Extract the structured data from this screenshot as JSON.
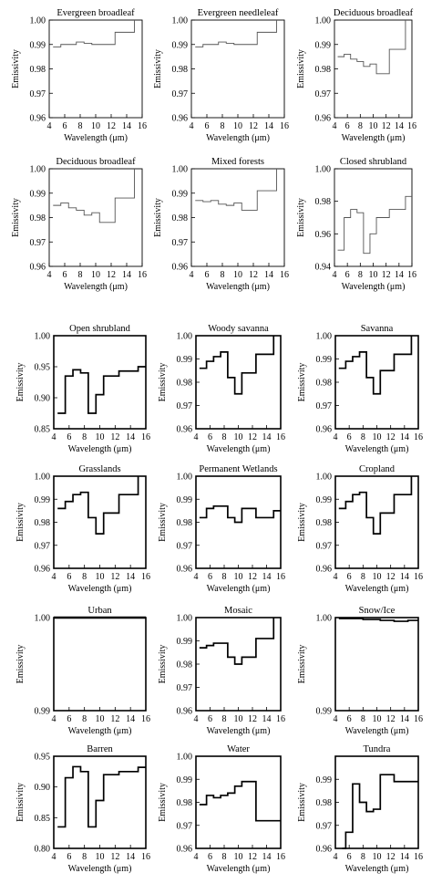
{
  "chart_data": [
    {
      "type": "line",
      "title": "Evergreen broadleaf",
      "xlabel": "Wavelength (μm)",
      "ylabel": "Emissivity",
      "xlim": [
        4,
        16
      ],
      "ylim": [
        0.96,
        1.0
      ],
      "xticks": [
        "4",
        "6",
        "8",
        "10",
        "12",
        "14",
        "16"
      ],
      "yticks": [
        "0.96",
        "0.97",
        "0.98",
        "0.99",
        "1.00"
      ],
      "style": "light",
      "x": [
        4.5,
        5.5,
        5.5,
        6.5,
        6.5,
        7.5,
        7.5,
        8.5,
        8.5,
        9.5,
        9.5,
        10.5,
        10.5,
        11.5,
        11.5,
        12.5,
        12.5,
        14,
        14,
        15,
        15
      ],
      "y": [
        0.989,
        0.989,
        0.99,
        0.99,
        0.99,
        0.99,
        0.991,
        0.991,
        0.9905,
        0.9905,
        0.99,
        0.99,
        0.99,
        0.99,
        0.99,
        0.99,
        0.995,
        0.995,
        0.995,
        0.995,
        1.0
      ]
    },
    {
      "type": "line",
      "title": "Evergreen needleleaf",
      "xlabel": "Wavelength (μm)",
      "ylabel": "Emissivity",
      "xlim": [
        4,
        16
      ],
      "ylim": [
        0.96,
        1.0
      ],
      "xticks": [
        "4",
        "6",
        "8",
        "10",
        "12",
        "14",
        "16"
      ],
      "yticks": [
        "0.96",
        "0.97",
        "0.98",
        "0.99",
        "1.00"
      ],
      "style": "light",
      "x": [
        4.5,
        5.5,
        5.5,
        6.5,
        6.5,
        7.5,
        7.5,
        8.5,
        8.5,
        9.5,
        9.5,
        10.5,
        10.5,
        11.5,
        11.5,
        12.5,
        12.5,
        14,
        14,
        15,
        15
      ],
      "y": [
        0.989,
        0.989,
        0.99,
        0.99,
        0.99,
        0.99,
        0.991,
        0.991,
        0.9905,
        0.9905,
        0.99,
        0.99,
        0.99,
        0.99,
        0.99,
        0.99,
        0.995,
        0.995,
        0.995,
        0.995,
        1.0
      ]
    },
    {
      "type": "line",
      "title": "Deciduous broadleaf",
      "xlabel": "Wavelength (μm)",
      "ylabel": "Emissivity",
      "xlim": [
        4,
        16
      ],
      "ylim": [
        0.96,
        1.0
      ],
      "xticks": [
        "4",
        "6",
        "8",
        "10",
        "12",
        "14",
        "16"
      ],
      "yticks": [
        "0.96",
        "0.97",
        "0.98",
        "0.99",
        "1.00"
      ],
      "style": "light",
      "x": [
        4.5,
        5.5,
        5.5,
        6.5,
        6.5,
        7.5,
        7.5,
        8.5,
        8.5,
        9.5,
        9.5,
        10.5,
        10.5,
        12.5,
        12.5,
        15,
        15
      ],
      "y": [
        0.985,
        0.985,
        0.986,
        0.986,
        0.984,
        0.984,
        0.983,
        0.983,
        0.981,
        0.981,
        0.982,
        0.982,
        0.978,
        0.978,
        0.988,
        0.988,
        1.0
      ]
    },
    {
      "type": "line",
      "title": "Deciduous broadleaf",
      "xlabel": "Wavelength (μm)",
      "ylabel": "Emissivity",
      "xlim": [
        4,
        16
      ],
      "ylim": [
        0.96,
        1.0
      ],
      "xticks": [
        "4",
        "6",
        "8",
        "10",
        "12",
        "14",
        "16"
      ],
      "yticks": [
        "0.96",
        "0.97",
        "0.98",
        "0.99",
        "1.00"
      ],
      "style": "light",
      "x": [
        4.5,
        5.5,
        5.5,
        6.5,
        6.5,
        7.5,
        7.5,
        8.5,
        8.5,
        9.5,
        9.5,
        10.5,
        10.5,
        12.5,
        12.5,
        15,
        15
      ],
      "y": [
        0.985,
        0.985,
        0.986,
        0.986,
        0.984,
        0.984,
        0.983,
        0.983,
        0.981,
        0.981,
        0.982,
        0.982,
        0.978,
        0.978,
        0.988,
        0.988,
        1.0
      ]
    },
    {
      "type": "line",
      "title": "Mixed forests",
      "xlabel": "Wavelength (μm)",
      "ylabel": "Emissivity",
      "xlim": [
        4,
        16
      ],
      "ylim": [
        0.96,
        1.0
      ],
      "xticks": [
        "4",
        "6",
        "8",
        "10",
        "12",
        "14",
        "16"
      ],
      "yticks": [
        "0.96",
        "0.97",
        "0.98",
        "0.99",
        "1.00"
      ],
      "style": "light",
      "x": [
        4.5,
        5.5,
        5.5,
        6.5,
        6.5,
        7.5,
        7.5,
        8.5,
        8.5,
        9.5,
        9.5,
        10.5,
        10.5,
        12.5,
        12.5,
        14,
        14,
        15,
        15
      ],
      "y": [
        0.987,
        0.987,
        0.9865,
        0.9865,
        0.987,
        0.987,
        0.9855,
        0.9855,
        0.985,
        0.985,
        0.986,
        0.986,
        0.983,
        0.983,
        0.991,
        0.991,
        0.991,
        0.991,
        1.0
      ]
    },
    {
      "type": "line",
      "title": "Closed shrubland",
      "xlabel": "Wavelength (μm)",
      "ylabel": "Emissivity",
      "xlim": [
        4,
        16
      ],
      "ylim": [
        0.94,
        1.0
      ],
      "xticks": [
        "4",
        "6",
        "8",
        "10",
        "12",
        "14",
        "16"
      ],
      "yticks": [
        "0.94",
        "0.96",
        "0.98",
        "1.00"
      ],
      "style": "light",
      "x": [
        4.5,
        5.5,
        5.5,
        6.5,
        6.5,
        7.5,
        7.5,
        8.5,
        8.5,
        9.5,
        9.5,
        10.5,
        10.5,
        12.5,
        12.5,
        15,
        15,
        16
      ],
      "y": [
        0.95,
        0.95,
        0.97,
        0.97,
        0.975,
        0.975,
        0.973,
        0.973,
        0.948,
        0.948,
        0.96,
        0.96,
        0.97,
        0.97,
        0.975,
        0.975,
        0.983,
        0.983
      ]
    },
    {
      "type": "line",
      "title": "Open shrubland",
      "xlabel": "Wavelength (μm)",
      "ylabel": "Emissivity",
      "xlim": [
        4,
        16
      ],
      "ylim": [
        0.85,
        1.0
      ],
      "xticks": [
        "4",
        "6",
        "8",
        "10",
        "12",
        "14",
        "16"
      ],
      "yticks": [
        "0.85",
        "0.90",
        "0.95",
        "1.00"
      ],
      "style": "bold",
      "x": [
        4.5,
        5.5,
        5.5,
        6.5,
        6.5,
        7.5,
        7.5,
        8.5,
        8.5,
        9.5,
        9.5,
        10.5,
        10.5,
        12.5,
        12.5,
        15,
        15,
        16
      ],
      "y": [
        0.875,
        0.875,
        0.935,
        0.935,
        0.945,
        0.945,
        0.94,
        0.94,
        0.875,
        0.875,
        0.905,
        0.905,
        0.935,
        0.935,
        0.943,
        0.943,
        0.95,
        0.95
      ]
    },
    {
      "type": "line",
      "title": "Woody savanna",
      "xlabel": "Wavelength (μm)",
      "ylabel": "Emissivity",
      "xlim": [
        4,
        16
      ],
      "ylim": [
        0.96,
        1.0
      ],
      "xticks": [
        "4",
        "6",
        "8",
        "10",
        "12",
        "14",
        "16"
      ],
      "yticks": [
        "0.96",
        "0.97",
        "0.98",
        "0.99",
        "1.00"
      ],
      "style": "bold",
      "x": [
        4.5,
        5.5,
        5.5,
        6.5,
        6.5,
        7.5,
        7.5,
        8.5,
        8.5,
        9.5,
        9.5,
        10.5,
        10.5,
        12.5,
        12.5,
        15,
        15
      ],
      "y": [
        0.986,
        0.986,
        0.989,
        0.989,
        0.991,
        0.991,
        0.993,
        0.993,
        0.982,
        0.982,
        0.975,
        0.975,
        0.984,
        0.984,
        0.992,
        0.992,
        1.0
      ]
    },
    {
      "type": "line",
      "title": "Savanna",
      "xlabel": "Wavelength (μm)",
      "ylabel": "Emissivity",
      "xlim": [
        4,
        16
      ],
      "ylim": [
        0.96,
        1.0
      ],
      "xticks": [
        "4",
        "6",
        "8",
        "10",
        "12",
        "14",
        "16"
      ],
      "yticks": [
        "0.96",
        "0.97",
        "0.98",
        "0.99",
        "1.00"
      ],
      "style": "bold",
      "x": [
        4.5,
        5.5,
        5.5,
        6.5,
        6.5,
        7.5,
        7.5,
        8.5,
        8.5,
        9.5,
        9.5,
        10.5,
        10.5,
        12.5,
        12.5,
        15,
        15
      ],
      "y": [
        0.986,
        0.986,
        0.989,
        0.989,
        0.991,
        0.991,
        0.993,
        0.993,
        0.982,
        0.982,
        0.975,
        0.975,
        0.985,
        0.985,
        0.992,
        0.992,
        1.0
      ]
    },
    {
      "type": "line",
      "title": "Grasslands",
      "xlabel": "Wavelength (μm)",
      "ylabel": "Emissivity",
      "xlim": [
        4,
        16
      ],
      "ylim": [
        0.96,
        1.0
      ],
      "xticks": [
        "4",
        "6",
        "8",
        "10",
        "12",
        "14",
        "16"
      ],
      "yticks": [
        "0.96",
        "0.97",
        "0.98",
        "0.99",
        "1.00"
      ],
      "style": "bold",
      "x": [
        4.5,
        5.5,
        5.5,
        6.5,
        6.5,
        7.5,
        7.5,
        8.5,
        8.5,
        9.5,
        9.5,
        10.5,
        10.5,
        12.5,
        12.5,
        15,
        15
      ],
      "y": [
        0.986,
        0.986,
        0.989,
        0.989,
        0.992,
        0.992,
        0.993,
        0.993,
        0.982,
        0.982,
        0.975,
        0.975,
        0.984,
        0.984,
        0.992,
        0.992,
        1.0
      ]
    },
    {
      "type": "line",
      "title": "Permanent Wetlands",
      "xlabel": "Wavelength (μm)",
      "ylabel": "Emissivity",
      "xlim": [
        4,
        16
      ],
      "ylim": [
        0.96,
        1.0
      ],
      "xticks": [
        "4",
        "6",
        "8",
        "10",
        "12",
        "14",
        "16"
      ],
      "yticks": [
        "0.96",
        "0.97",
        "0.98",
        "0.99",
        "1.00"
      ],
      "style": "bold",
      "x": [
        4.5,
        5.5,
        5.5,
        6.5,
        6.5,
        7.5,
        7.5,
        8.5,
        8.5,
        9.5,
        9.5,
        10.5,
        10.5,
        12.5,
        12.5,
        15,
        15,
        16
      ],
      "y": [
        0.982,
        0.982,
        0.986,
        0.986,
        0.987,
        0.987,
        0.987,
        0.987,
        0.982,
        0.982,
        0.98,
        0.98,
        0.986,
        0.986,
        0.982,
        0.982,
        0.985,
        0.985
      ]
    },
    {
      "type": "line",
      "title": "Cropland",
      "xlabel": "Wavelength (μm)",
      "ylabel": "Emissivity",
      "xlim": [
        4,
        16
      ],
      "ylim": [
        0.96,
        1.0
      ],
      "xticks": [
        "4",
        "6",
        "8",
        "10",
        "12",
        "14",
        "16"
      ],
      "yticks": [
        "0.96",
        "0.97",
        "0.98",
        "0.99",
        "1.00"
      ],
      "style": "bold",
      "x": [
        4.5,
        5.5,
        5.5,
        6.5,
        6.5,
        7.5,
        7.5,
        8.5,
        8.5,
        9.5,
        9.5,
        10.5,
        10.5,
        12.5,
        12.5,
        15,
        15
      ],
      "y": [
        0.986,
        0.986,
        0.989,
        0.989,
        0.992,
        0.992,
        0.993,
        0.993,
        0.982,
        0.982,
        0.975,
        0.975,
        0.984,
        0.984,
        0.992,
        0.992,
        1.0
      ]
    },
    {
      "type": "line",
      "title": "Urban",
      "xlabel": "Wavelength (μm)",
      "ylabel": "Emissivity",
      "xlim": [
        4,
        16
      ],
      "ylim": [
        0.99,
        1.0
      ],
      "xticks": [
        "4",
        "6",
        "8",
        "10",
        "12",
        "14",
        "16"
      ],
      "yticks": [
        "0.99",
        "1.00"
      ],
      "style": "bold",
      "x": [
        4,
        16
      ],
      "y": [
        1.0,
        1.0
      ]
    },
    {
      "type": "line",
      "title": "Mosaic",
      "xlabel": "Wavelength (μm)",
      "ylabel": "Emissivity",
      "xlim": [
        4,
        16
      ],
      "ylim": [
        0.96,
        1.0
      ],
      "xticks": [
        "4",
        "6",
        "8",
        "10",
        "12",
        "14",
        "16"
      ],
      "yticks": [
        "0.96",
        "0.97",
        "0.98",
        "0.99",
        "1.00"
      ],
      "style": "bold",
      "x": [
        4.5,
        5.5,
        5.5,
        6.5,
        6.5,
        7.5,
        7.5,
        8.5,
        8.5,
        9.5,
        9.5,
        10.5,
        10.5,
        12.5,
        12.5,
        15,
        15
      ],
      "y": [
        0.987,
        0.987,
        0.988,
        0.988,
        0.989,
        0.989,
        0.989,
        0.989,
        0.983,
        0.983,
        0.98,
        0.98,
        0.983,
        0.983,
        0.991,
        0.991,
        1.0
      ]
    },
    {
      "type": "line",
      "title": "Snow/Ice",
      "xlabel": "Wavelength (μm)",
      "ylabel": "Emissivity",
      "xlim": [
        4,
        16
      ],
      "ylim": [
        0.99,
        1.0
      ],
      "xticks": [
        "4",
        "6",
        "8",
        "10",
        "12",
        "14",
        "16"
      ],
      "yticks": [
        "0.99",
        "1.00"
      ],
      "style": "bold",
      "x": [
        4.5,
        8,
        8,
        10.5,
        10.5,
        12.5,
        12.5,
        14.5,
        14.5,
        16
      ],
      "y": [
        0.9999,
        0.9999,
        0.9998,
        0.9998,
        0.9997,
        0.9997,
        0.9996,
        0.9996,
        0.9997,
        0.9997
      ]
    },
    {
      "type": "line",
      "title": "Barren",
      "xlabel": "Wavelength (μm)",
      "ylabel": "Emissivity",
      "xlim": [
        4,
        16
      ],
      "ylim": [
        0.8,
        0.95
      ],
      "xticks": [
        "4",
        "6",
        "8",
        "10",
        "12",
        "14",
        "16"
      ],
      "yticks": [
        "0.80",
        "0.85",
        "0.90",
        "0.95"
      ],
      "style": "bold",
      "x": [
        4.5,
        5.5,
        5.5,
        6.5,
        6.5,
        7.5,
        7.5,
        8.5,
        8.5,
        9.5,
        9.5,
        10.5,
        10.5,
        12.5,
        12.5,
        15,
        15,
        16
      ],
      "y": [
        0.835,
        0.835,
        0.915,
        0.915,
        0.933,
        0.933,
        0.925,
        0.925,
        0.835,
        0.835,
        0.878,
        0.878,
        0.92,
        0.92,
        0.925,
        0.925,
        0.932,
        0.932
      ]
    },
    {
      "type": "line",
      "title": "Water",
      "xlabel": "Wavelength (μm)",
      "ylabel": "Emissivity",
      "xlim": [
        4,
        16
      ],
      "ylim": [
        0.96,
        1.0
      ],
      "xticks": [
        "4",
        "6",
        "8",
        "10",
        "12",
        "14",
        "16"
      ],
      "yticks": [
        "0.96",
        "0.97",
        "0.98",
        "0.99",
        "1.00"
      ],
      "style": "bold",
      "x": [
        4.5,
        5.5,
        5.5,
        6.5,
        6.5,
        7.5,
        7.5,
        8.5,
        8.5,
        9.5,
        9.5,
        10.5,
        10.5,
        12.5,
        12.5,
        16
      ],
      "y": [
        0.979,
        0.979,
        0.983,
        0.983,
        0.982,
        0.982,
        0.983,
        0.983,
        0.984,
        0.984,
        0.987,
        0.987,
        0.989,
        0.989,
        0.972,
        0.972
      ]
    },
    {
      "type": "line",
      "title": "Tundra",
      "xlabel": "Wavelength (μm)",
      "ylabel": "Emissivity",
      "xlim": [
        4,
        16
      ],
      "ylim": [
        0.96,
        1.0
      ],
      "xticks": [
        "4",
        "6",
        "8",
        "10",
        "12",
        "14",
        "16"
      ],
      "yticks": [
        "0.96",
        "0.97",
        "0.98",
        "0.99"
      ],
      "style": "bold",
      "x": [
        5,
        5.5,
        5.5,
        6.5,
        6.5,
        7.5,
        7.5,
        8.5,
        8.5,
        9.5,
        9.5,
        10.5,
        10.5,
        12.5,
        12.5,
        15,
        15,
        16
      ],
      "y": [
        0.96,
        0.96,
        0.967,
        0.967,
        0.988,
        0.988,
        0.98,
        0.98,
        0.976,
        0.976,
        0.977,
        0.977,
        0.992,
        0.992,
        0.989,
        0.989,
        0.989,
        0.989
      ]
    }
  ]
}
